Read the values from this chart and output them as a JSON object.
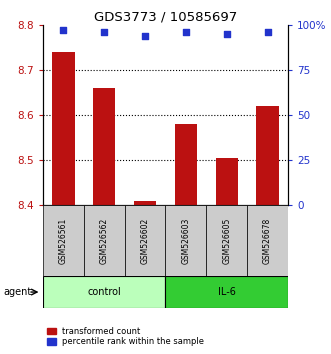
{
  "title": "GDS3773 / 10585697",
  "samples": [
    "GSM526561",
    "GSM526562",
    "GSM526602",
    "GSM526603",
    "GSM526605",
    "GSM526678"
  ],
  "transformed_counts": [
    8.74,
    8.66,
    8.41,
    8.58,
    8.505,
    8.62
  ],
  "percentile_ranks": [
    97,
    96,
    94,
    96,
    95,
    96
  ],
  "ylim_left": [
    8.4,
    8.8
  ],
  "ylim_right": [
    0,
    100
  ],
  "yticks_left": [
    8.4,
    8.5,
    8.6,
    8.7,
    8.8
  ],
  "yticks_right": [
    0,
    25,
    50,
    75,
    100
  ],
  "bar_color": "#bb1111",
  "dot_color": "#2233cc",
  "groups": [
    {
      "label": "control",
      "start": 0,
      "end": 3,
      "color": "#bbffbb"
    },
    {
      "label": "IL-6",
      "start": 3,
      "end": 6,
      "color": "#33cc33"
    }
  ],
  "agent_label": "agent",
  "legend_items": [
    {
      "label": "transformed count",
      "color": "#bb1111"
    },
    {
      "label": "percentile rank within the sample",
      "color": "#2233cc"
    }
  ],
  "background_color": "#ffffff",
  "xlabel_area_color": "#cccccc",
  "grid_yticks": [
    8.5,
    8.6,
    8.7
  ]
}
